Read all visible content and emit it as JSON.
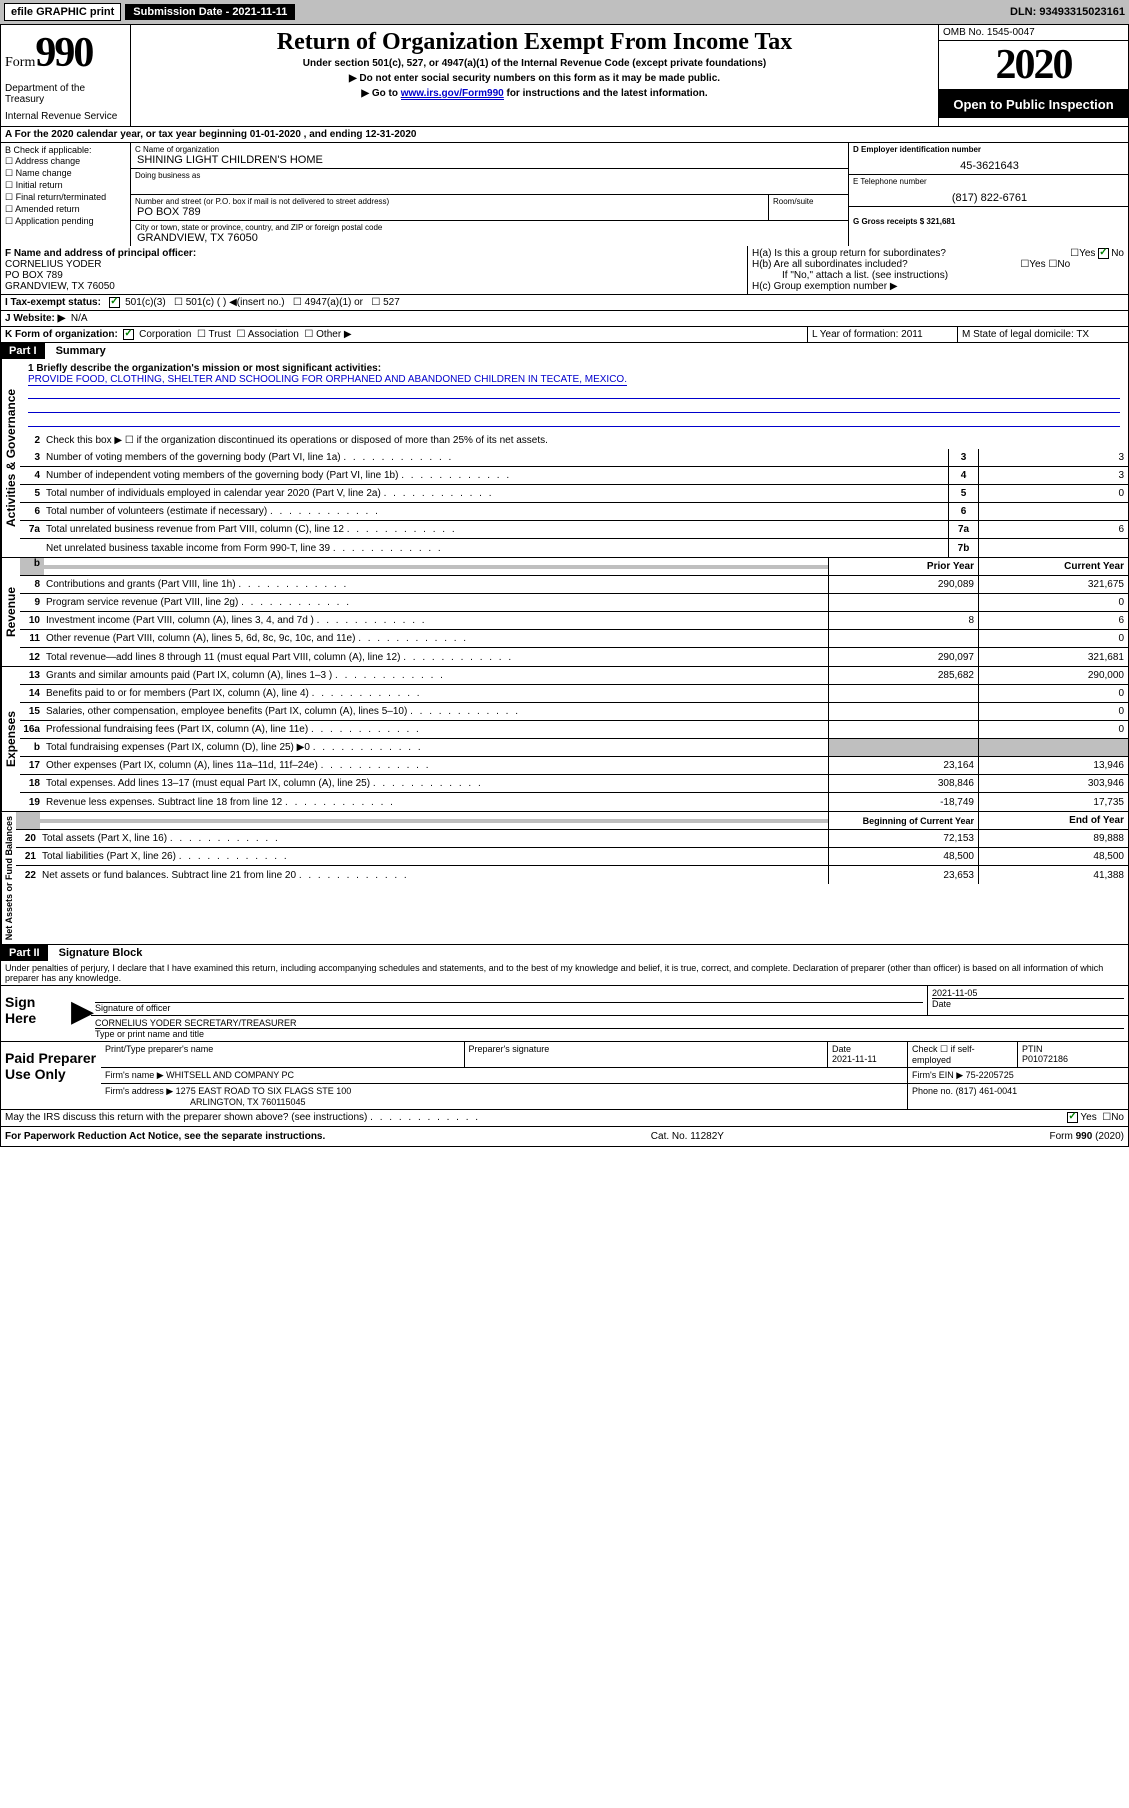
{
  "topbar": {
    "efile": "efile GRAPHIC print",
    "submission_label": "Submission Date - 2021-11-11",
    "dln_label": "DLN: 93493315023161"
  },
  "header": {
    "form_label": "Form",
    "form_number": "990",
    "dept": "Department of the Treasury",
    "irs": "Internal Revenue Service",
    "title": "Return of Organization Exempt From Income Tax",
    "subtitle": "Under section 501(c), 527, or 4947(a)(1) of the Internal Revenue Code (except private foundations)",
    "instr1": "▶ Do not enter social security numbers on this form as it may be made public.",
    "instr2_pre": "▶ Go to ",
    "instr2_link": "www.irs.gov/Form990",
    "instr2_post": " for instructions and the latest information.",
    "omb": "OMB No. 1545-0047",
    "year": "2020",
    "open_public": "Open to Public Inspection"
  },
  "row_a": "A For the 2020 calendar year, or tax year beginning 01-01-2020    , and ending 12-31-2020",
  "section_b": {
    "label": "B Check if applicable:",
    "items": [
      "Address change",
      "Name change",
      "Initial return",
      "Final return/terminated",
      "Amended return",
      "Application pending"
    ]
  },
  "section_c": {
    "name_label": "C Name of organization",
    "name": "SHINING LIGHT CHILDREN'S HOME",
    "dba_label": "Doing business as",
    "addr_label": "Number and street (or P.O. box if mail is not delivered to street address)",
    "room_label": "Room/suite",
    "addr": "PO BOX 789",
    "city_label": "City or town, state or province, country, and ZIP or foreign postal code",
    "city": "GRANDVIEW, TX  76050"
  },
  "section_d": {
    "ein_label": "D Employer identification number",
    "ein": "45-3621643",
    "tel_label": "E Telephone number",
    "tel": "(817) 822-6761",
    "gross_label": "G Gross receipts $ 321,681"
  },
  "section_f": {
    "label": "F  Name and address of principal officer:",
    "name": "CORNELIUS YODER",
    "addr1": "PO BOX 789",
    "addr2": "GRANDVIEW, TX  76050"
  },
  "section_h": {
    "ha": "H(a)  Is this a group return for subordinates?",
    "hb": "H(b)  Are all subordinates included?",
    "hb_note": "If \"No,\" attach a list. (see instructions)",
    "hc": "H(c)  Group exemption number ▶"
  },
  "section_i": {
    "label": "I  Tax-exempt status:",
    "opt1": "501(c)(3)",
    "opt2": "501(c) (  ) ◀(insert no.)",
    "opt3": "4947(a)(1) or",
    "opt4": "527"
  },
  "section_j": {
    "label": "J  Website: ▶",
    "val": "N/A"
  },
  "section_k": {
    "label": "K Form of organization:",
    "corp": "Corporation",
    "trust": "Trust",
    "assoc": "Association",
    "other": "Other ▶"
  },
  "section_l": {
    "label": "L Year of formation: 2011"
  },
  "section_m": {
    "label": "M State of legal domicile: TX"
  },
  "part1": {
    "header": "Part I",
    "title": "Summary",
    "line1_label": "1  Briefly describe the organization's mission or most significant activities:",
    "line1_text": "PROVIDE FOOD, CLOTHING, SHELTER AND SCHOOLING FOR ORPHANED AND ABANDONED CHILDREN IN TECATE, MEXICO.",
    "line2": "Check this box ▶ ☐  if the organization discontinued its operations or disposed of more than 25% of its net assets.",
    "vtext1": "Activities & Governance",
    "vtext2": "Revenue",
    "vtext3": "Expenses",
    "vtext4": "Net Assets or Fund Balances",
    "lines_ag": [
      {
        "n": "3",
        "t": "Number of voting members of the governing body (Part VI, line 1a)",
        "box": "3",
        "v": "3"
      },
      {
        "n": "4",
        "t": "Number of independent voting members of the governing body (Part VI, line 1b)",
        "box": "4",
        "v": "3"
      },
      {
        "n": "5",
        "t": "Total number of individuals employed in calendar year 2020 (Part V, line 2a)",
        "box": "5",
        "v": "0"
      },
      {
        "n": "6",
        "t": "Total number of volunteers (estimate if necessary)",
        "box": "6",
        "v": ""
      },
      {
        "n": "7a",
        "t": "Total unrelated business revenue from Part VIII, column (C), line 12",
        "box": "7a",
        "v": "6"
      },
      {
        "n": "",
        "t": "Net unrelated business taxable income from Form 990-T, line 39",
        "box": "7b",
        "v": ""
      }
    ],
    "col_prior": "Prior Year",
    "col_current": "Current Year",
    "lines_rev": [
      {
        "n": "8",
        "t": "Contributions and grants (Part VIII, line 1h)",
        "p": "290,089",
        "c": "321,675"
      },
      {
        "n": "9",
        "t": "Program service revenue (Part VIII, line 2g)",
        "p": "",
        "c": "0"
      },
      {
        "n": "10",
        "t": "Investment income (Part VIII, column (A), lines 3, 4, and 7d )",
        "p": "8",
        "c": "6"
      },
      {
        "n": "11",
        "t": "Other revenue (Part VIII, column (A), lines 5, 6d, 8c, 9c, 10c, and 11e)",
        "p": "",
        "c": "0"
      },
      {
        "n": "12",
        "t": "Total revenue—add lines 8 through 11 (must equal Part VIII, column (A), line 12)",
        "p": "290,097",
        "c": "321,681"
      }
    ],
    "lines_exp": [
      {
        "n": "13",
        "t": "Grants and similar amounts paid (Part IX, column (A), lines 1–3 )",
        "p": "285,682",
        "c": "290,000"
      },
      {
        "n": "14",
        "t": "Benefits paid to or for members (Part IX, column (A), line 4)",
        "p": "",
        "c": "0"
      },
      {
        "n": "15",
        "t": "Salaries, other compensation, employee benefits (Part IX, column (A), lines 5–10)",
        "p": "",
        "c": "0"
      },
      {
        "n": "16a",
        "t": "Professional fundraising fees (Part IX, column (A), line 11e)",
        "p": "",
        "c": "0"
      },
      {
        "n": "b",
        "t": "Total fundraising expenses (Part IX, column (D), line 25) ▶0",
        "p": "",
        "c": "",
        "gray": true
      },
      {
        "n": "17",
        "t": "Other expenses (Part IX, column (A), lines 11a–11d, 11f–24e)",
        "p": "23,164",
        "c": "13,946"
      },
      {
        "n": "18",
        "t": "Total expenses. Add lines 13–17 (must equal Part IX, column (A), line 25)",
        "p": "308,846",
        "c": "303,946"
      },
      {
        "n": "19",
        "t": "Revenue less expenses. Subtract line 18 from line 12",
        "p": "-18,749",
        "c": "17,735"
      }
    ],
    "col_begin": "Beginning of Current Year",
    "col_end": "End of Year",
    "lines_net": [
      {
        "n": "20",
        "t": "Total assets (Part X, line 16)",
        "p": "72,153",
        "c": "89,888"
      },
      {
        "n": "21",
        "t": "Total liabilities (Part X, line 26)",
        "p": "48,500",
        "c": "48,500"
      },
      {
        "n": "22",
        "t": "Net assets or fund balances. Subtract line 21 from line 20",
        "p": "23,653",
        "c": "41,388"
      }
    ]
  },
  "part2": {
    "header": "Part II",
    "title": "Signature Block",
    "declaration": "Under penalties of perjury, I declare that I have examined this return, including accompanying schedules and statements, and to the best of my knowledge and belief, it is true, correct, and complete. Declaration of preparer (other than officer) is based on all information of which preparer has any knowledge."
  },
  "sign": {
    "left": "Sign Here",
    "sig_label": "Signature of officer",
    "date": "2021-11-05",
    "date_label": "Date",
    "name": "CORNELIUS YODER SECRETARY/TREASURER",
    "name_label": "Type or print name and title"
  },
  "paid": {
    "left": "Paid Preparer Use Only",
    "h1": "Print/Type preparer's name",
    "h2": "Preparer's signature",
    "h3": "Date",
    "date": "2021-11-11",
    "h4": "Check ☐ if self-employed",
    "h5": "PTIN",
    "ptin": "P01072186",
    "firm_label": "Firm's name    ▶",
    "firm": "WHITSELL AND COMPANY PC",
    "ein_label": "Firm's EIN ▶",
    "ein": "75-2205725",
    "addr_label": "Firm's address ▶",
    "addr1": "1275 EAST ROAD TO SIX FLAGS STE 100",
    "addr2": "ARLINGTON, TX  760115045",
    "phone_label": "Phone no.",
    "phone": "(817) 461-0041"
  },
  "discuss": "May the IRS discuss this return with the preparer shown above? (see instructions)",
  "footer": {
    "left": "For Paperwork Reduction Act Notice, see the separate instructions.",
    "mid": "Cat. No. 11282Y",
    "right": "Form 990 (2020)"
  }
}
